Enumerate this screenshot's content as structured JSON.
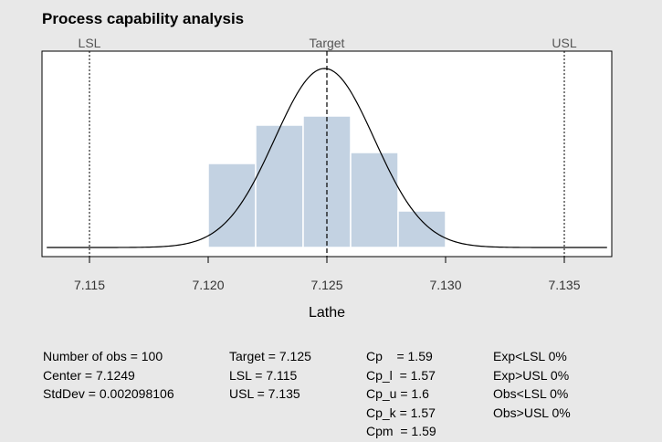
{
  "chart_data": {
    "type": "bar",
    "title": "Process capability analysis",
    "xlabel": "Lathe",
    "xlim": [
      7.113,
      7.137
    ],
    "ylim": [
      0,
      1.0
    ],
    "ticks": [
      7.115,
      7.12,
      7.125,
      7.13,
      7.135
    ],
    "tick_labels": [
      "7.115",
      "7.120",
      "7.125",
      "7.130",
      "7.135"
    ],
    "histogram": {
      "bin_edges": [
        7.12,
        7.122,
        7.124,
        7.126,
        7.128,
        7.13
      ],
      "heights": [
        0.46,
        0.67,
        0.72,
        0.52,
        0.2
      ]
    },
    "density_curve": {
      "mean": 7.1249,
      "sd": 0.002098106,
      "peak": 0.98
    },
    "spec_lines": [
      {
        "name": "LSL",
        "value": 7.115
      },
      {
        "name": "Target",
        "value": 7.125
      },
      {
        "name": "USL",
        "value": 7.135
      }
    ],
    "colors": {
      "bars": "#c3d2e2",
      "curve": "#000000",
      "panel": "#ffffff",
      "background": "#e8e8e8"
    }
  },
  "stats": {
    "col1": [
      "Number of obs = 100",
      "Center = 7.1249",
      "StdDev = 0.002098106"
    ],
    "col2": [
      "Target = 7.125",
      "LSL = 7.115",
      "USL = 7.135"
    ],
    "col3": [
      "Cp    = 1.59",
      "Cp_l  = 1.57",
      "Cp_u = 1.6",
      "Cp_k = 1.57",
      "Cpm  = 1.59"
    ],
    "col4": [
      "Exp<LSL 0%",
      "Exp>USL 0%",
      "Obs<LSL 0%",
      "Obs>USL 0%"
    ]
  }
}
